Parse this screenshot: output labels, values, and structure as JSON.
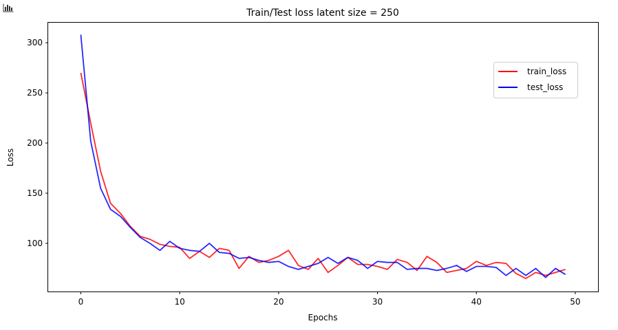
{
  "icons": {
    "corner": "bar-chart-icon"
  },
  "chart_data": {
    "type": "line",
    "title": "Train/Test loss latent size = 250",
    "xlabel": "Epochs",
    "ylabel": "Loss",
    "xlim": [
      -3.3,
      52.3
    ],
    "ylim": [
      52,
      320
    ],
    "xticks": [
      0,
      10,
      20,
      30,
      40,
      50
    ],
    "yticks": [
      100,
      150,
      200,
      250,
      300
    ],
    "grid": false,
    "legend": "top-right",
    "x": [
      0,
      1,
      2,
      3,
      4,
      5,
      6,
      7,
      8,
      9,
      10,
      11,
      12,
      13,
      14,
      15,
      16,
      17,
      18,
      19,
      20,
      21,
      22,
      23,
      24,
      25,
      26,
      27,
      28,
      29,
      30,
      31,
      32,
      33,
      34,
      35,
      36,
      37,
      38,
      39,
      40,
      41,
      42,
      43,
      44,
      45,
      46,
      47,
      48,
      49
    ],
    "series": [
      {
        "name": "train_loss",
        "color": "#ff0000",
        "values": [
          270,
          220,
          172,
          140,
          130,
          117,
          107,
          104,
          99,
          97,
          96,
          85,
          92,
          86,
          95,
          93,
          75,
          87,
          81,
          83,
          87,
          93,
          78,
          74,
          85,
          71,
          78,
          86,
          79,
          79,
          77,
          74,
          84,
          81,
          73,
          87,
          81,
          71,
          73,
          75,
          82,
          78,
          81,
          80,
          70,
          65,
          71,
          68,
          71,
          74
        ]
      },
      {
        "name": "test_loss",
        "color": "#0000ff",
        "values": [
          308,
          202,
          155,
          134,
          127,
          116,
          106,
          100,
          93,
          102,
          95,
          93,
          92,
          100,
          91,
          90,
          85,
          86,
          83,
          81,
          82,
          77,
          74,
          77,
          80,
          86,
          80,
          86,
          83,
          75,
          82,
          81,
          81,
          74,
          75,
          75,
          73,
          75,
          78,
          72,
          77,
          77,
          76,
          68,
          75,
          68,
          75,
          66,
          75,
          69
        ]
      }
    ]
  }
}
